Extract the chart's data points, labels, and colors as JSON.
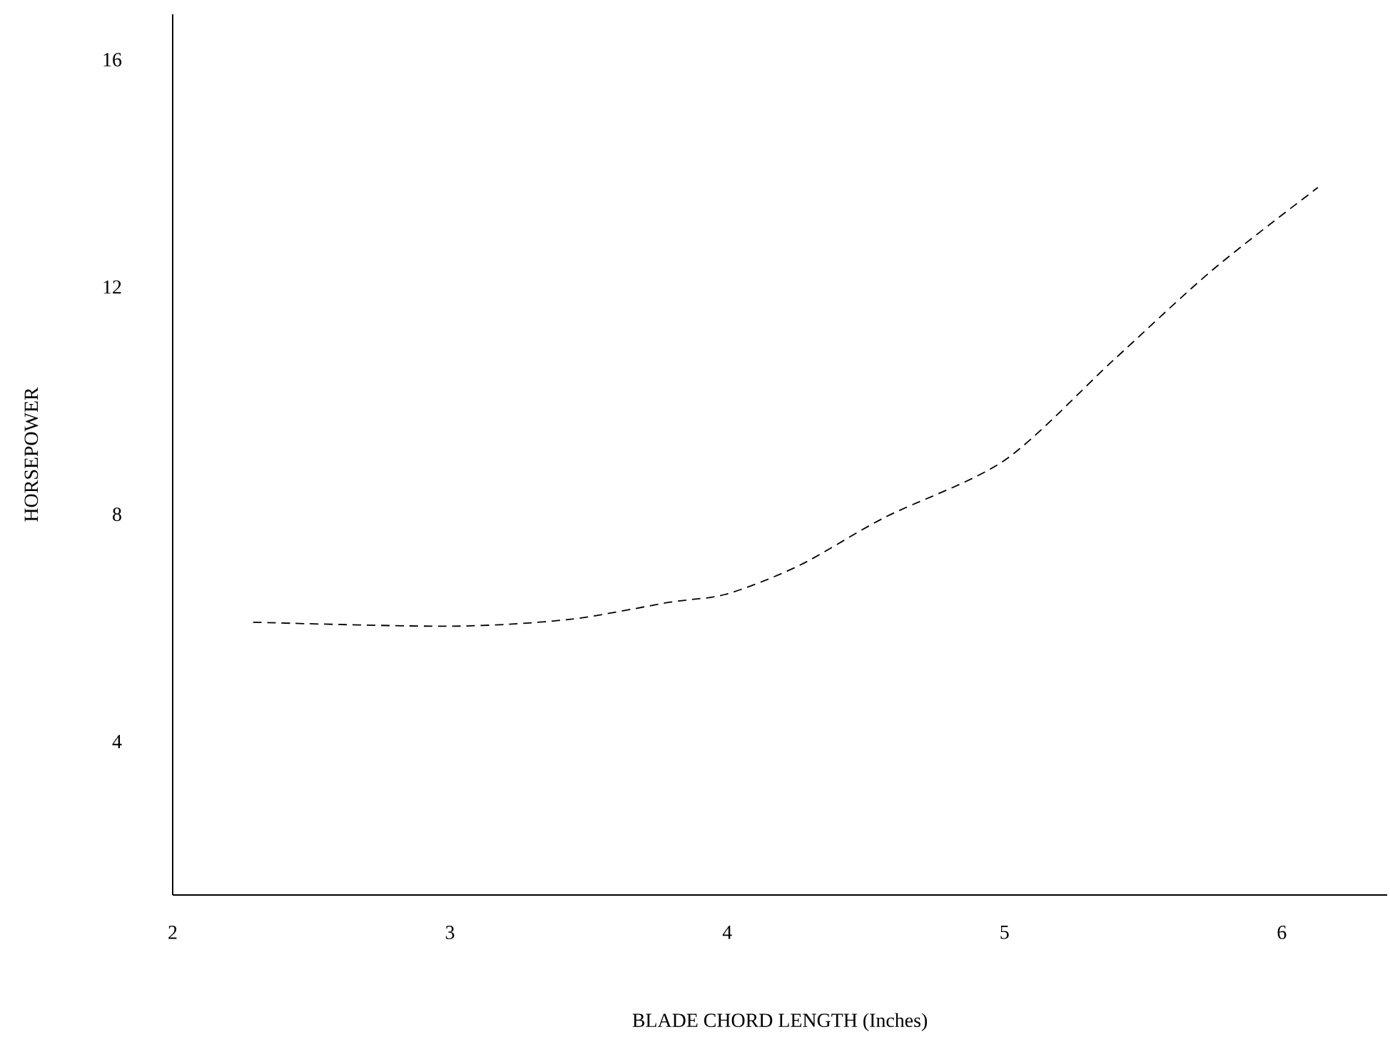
{
  "chart_data": {
    "type": "line",
    "xlabel": "BLADE CHORD LENGTH (Inches)",
    "ylabel": "HORSEPOWER",
    "xlim": [
      2,
      6.38
    ],
    "ylim": [
      1.3,
      16.8
    ],
    "xticks": [
      2,
      3,
      4,
      5,
      6
    ],
    "yticks": [
      4,
      8,
      12,
      16
    ],
    "line_style": "dashed",
    "grid": false,
    "series": [
      {
        "color": "#000000",
        "x": [
          2.29,
          3.0,
          3.43,
          3.79,
          4.0,
          4.26,
          4.57,
          5.0,
          5.39,
          5.75,
          6.13
        ],
        "values": [
          6.1,
          6.03,
          6.15,
          6.45,
          6.6,
          7.1,
          7.95,
          8.95,
          10.7,
          12.3,
          13.75
        ]
      }
    ]
  }
}
